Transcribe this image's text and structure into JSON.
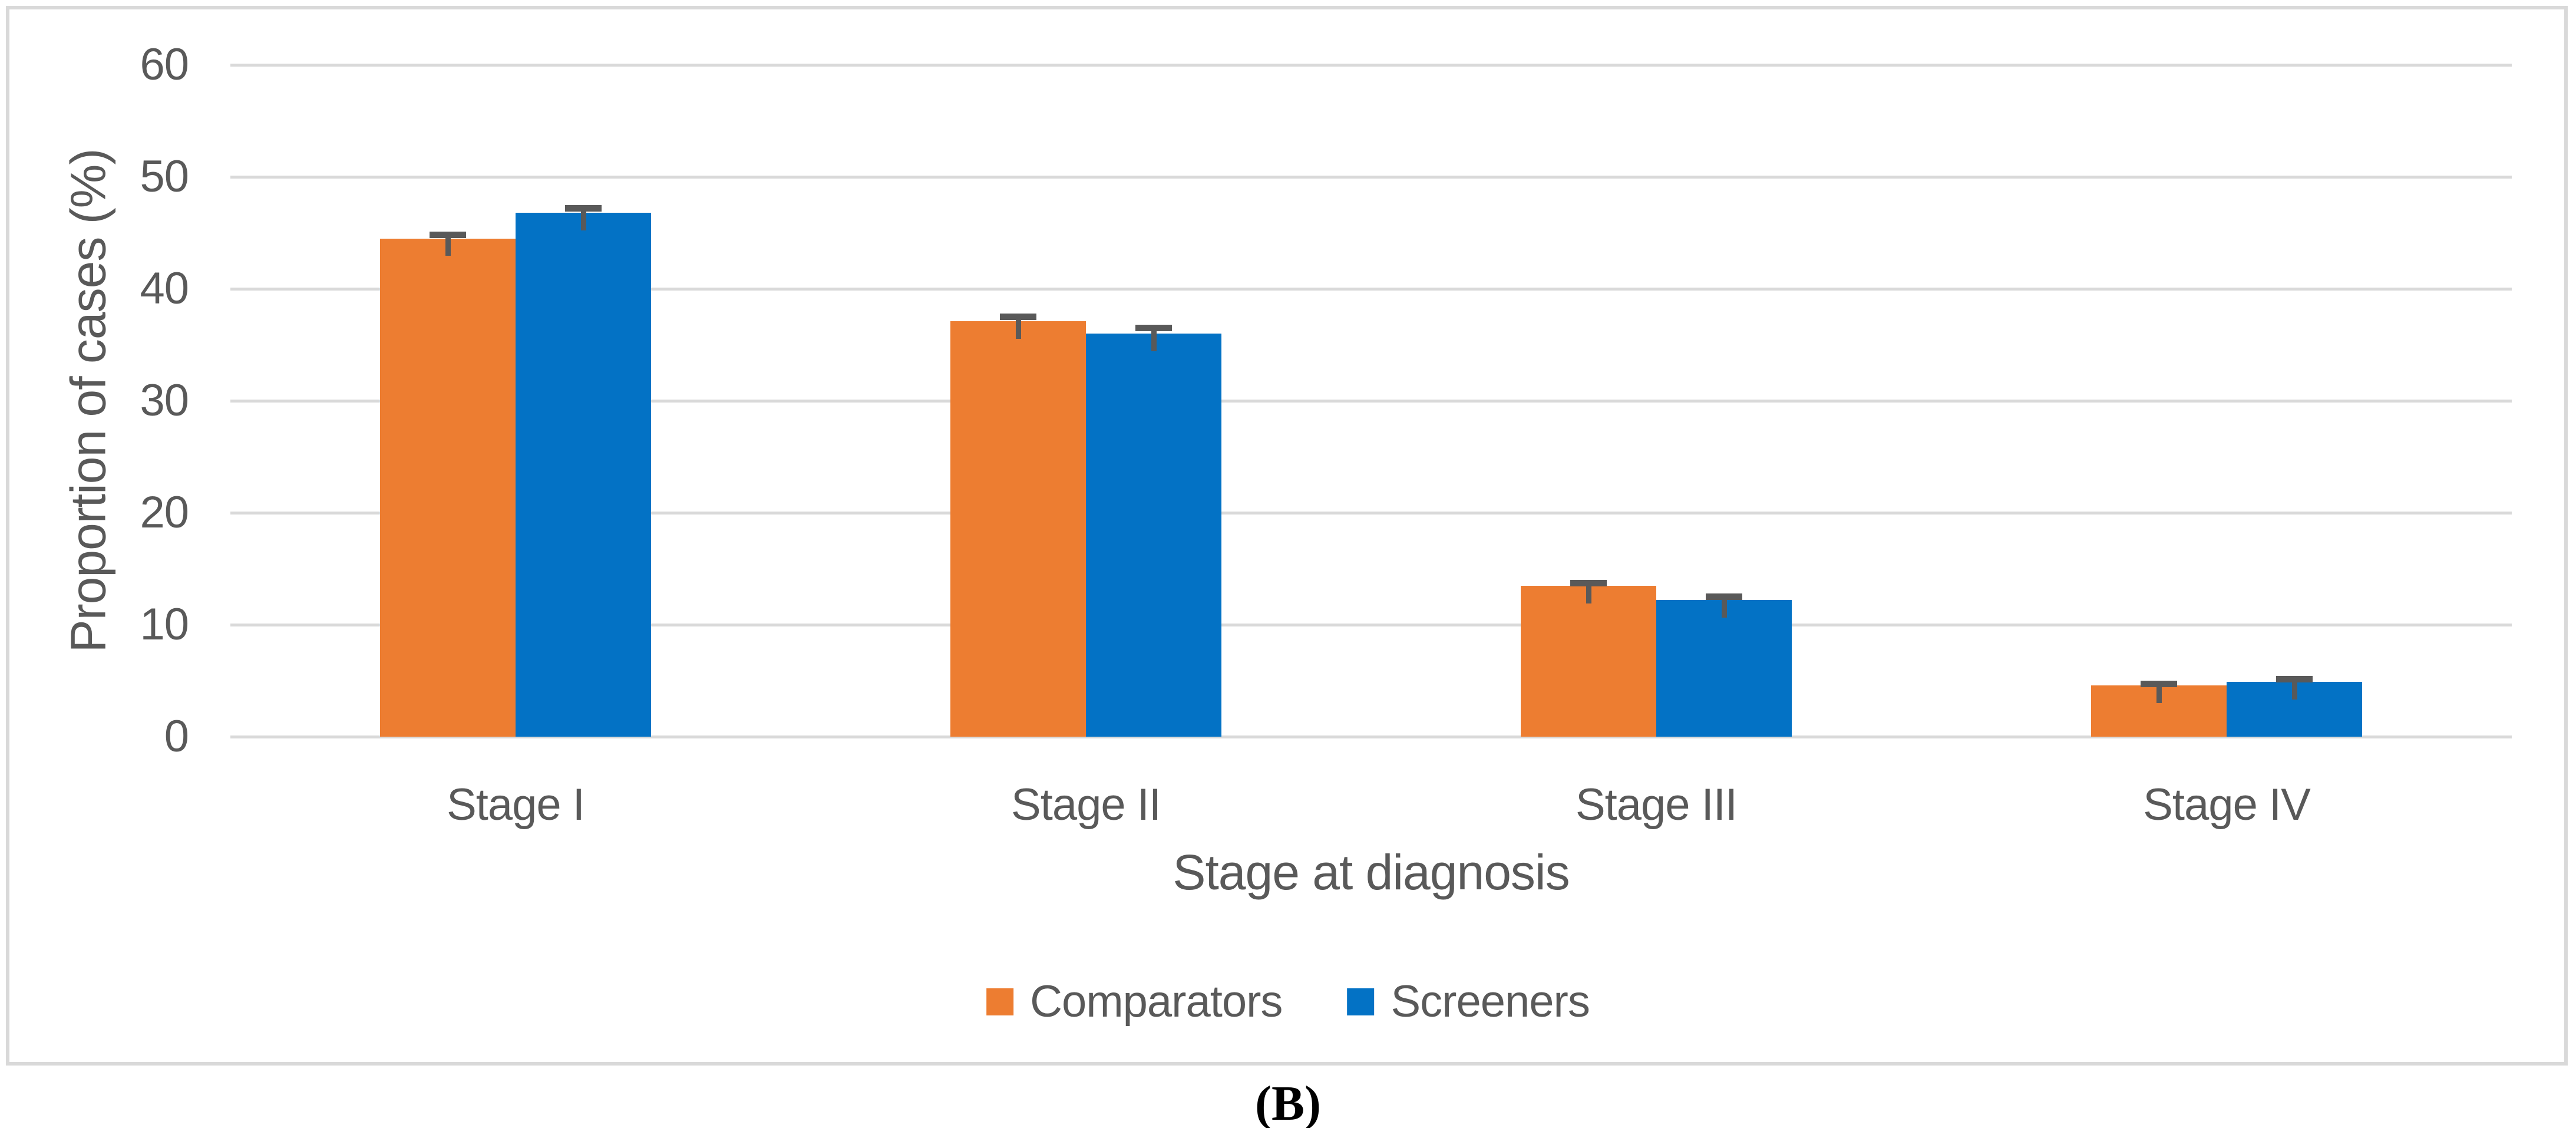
{
  "figure": {
    "caption": "(B)"
  },
  "chart_data": {
    "type": "bar",
    "title": "",
    "categories": [
      "Stage I",
      "Stage II",
      "Stage III",
      "Stage IV"
    ],
    "series": [
      {
        "name": "Comparators",
        "color": "#ED7D31",
        "values": [
          44.5,
          37.1,
          13.5,
          4.6
        ],
        "errors_upper": [
          0.6,
          0.7,
          0.5,
          0.4
        ]
      },
      {
        "name": "Screeners",
        "color": "#0372C5",
        "values": [
          46.8,
          36.0,
          12.2,
          4.9
        ],
        "errors_upper": [
          0.7,
          0.8,
          0.6,
          0.5
        ]
      }
    ],
    "xlabel": "Stage at diagnosis",
    "ylabel": "Proportion of cases (%)",
    "ylim": [
      0,
      60
    ],
    "yticks": [
      0,
      10,
      20,
      30,
      40,
      50,
      60
    ],
    "grid": "horizontal",
    "legend_position": "bottom",
    "colors": {
      "axis_text": "#595959",
      "gridline": "#D9D9D9",
      "error_bar": "#595959",
      "frame_border": "#D9D9D9",
      "caption_text": "#000000"
    }
  }
}
